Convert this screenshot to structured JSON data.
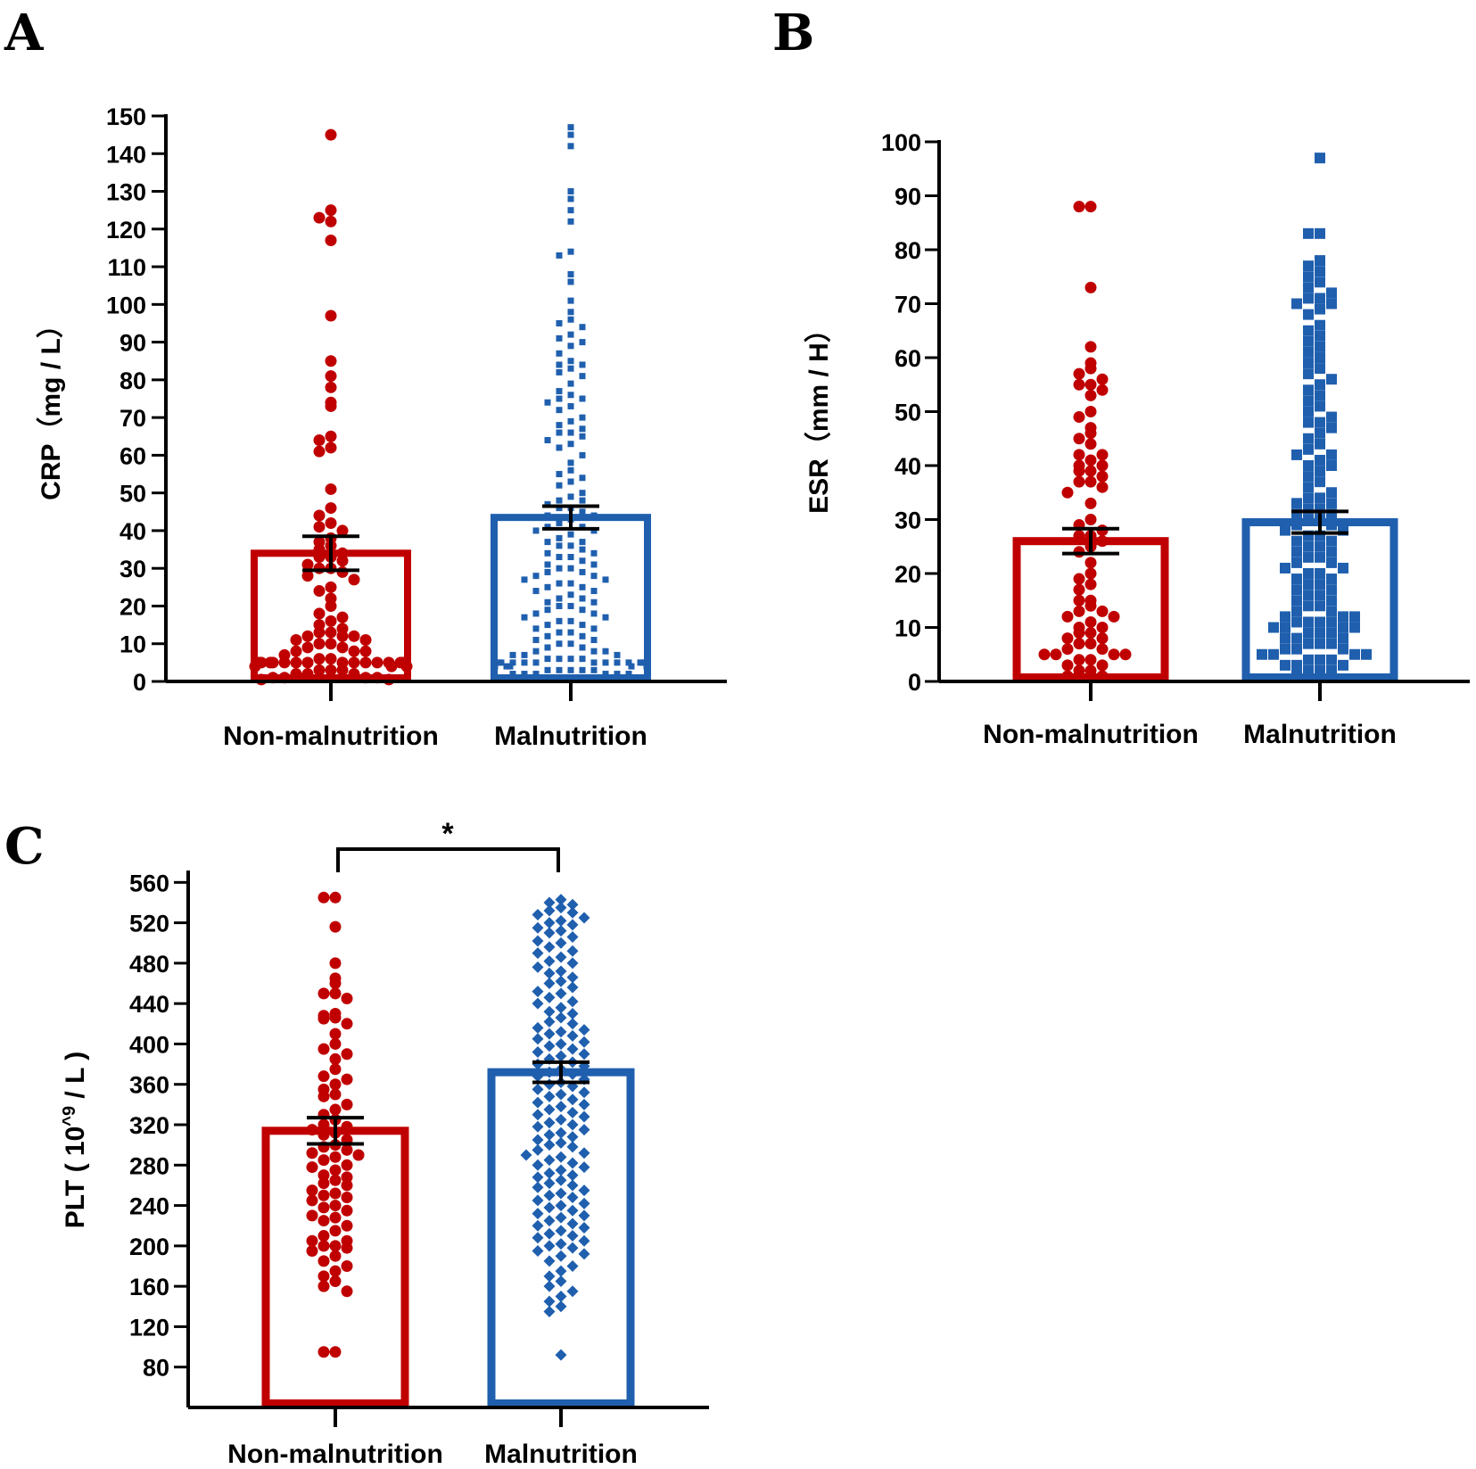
{
  "figure": {
    "panel_labels": [
      "A",
      "B",
      "C"
    ]
  },
  "colors": {
    "non_malnutrition": "#c00000",
    "malnutrition": "#1f5fae",
    "axis": "#000000"
  },
  "chart_data": [
    {
      "panel": "A",
      "type": "bar",
      "ylabel": "CRP（mg / L）",
      "categories": [
        "Non-malnutrition",
        "Malnutrition"
      ],
      "ylim": [
        0,
        150
      ],
      "yticks": [
        0,
        10,
        20,
        30,
        40,
        50,
        60,
        70,
        80,
        90,
        100,
        110,
        120,
        130,
        140,
        150
      ],
      "yticklabels": [
        "0",
        "10",
        "20",
        "30",
        "40",
        "50",
        "60",
        "70",
        "80",
        "90",
        "100",
        "110",
        "120",
        "130",
        "140",
        "150"
      ],
      "series": [
        {
          "name": "Non-malnutrition",
          "mean": 34,
          "sem": 4.5,
          "marker": "circle",
          "points": [
            145,
            125,
            123,
            122,
            117,
            97,
            85,
            81,
            78,
            74,
            73,
            65,
            64,
            62,
            61,
            51,
            46,
            44,
            42,
            41,
            40,
            38,
            37,
            36,
            35,
            34,
            33,
            33,
            32,
            31,
            30,
            30,
            29,
            28,
            27,
            25,
            24,
            22,
            20,
            18,
            17,
            16,
            15,
            14,
            13,
            13,
            12,
            12,
            12,
            11,
            11,
            10,
            10,
            9,
            9,
            8,
            8,
            8,
            7,
            6,
            6,
            5,
            5,
            5,
            5,
            5,
            5,
            5,
            5,
            5,
            5,
            5,
            5,
            5,
            5,
            4,
            4,
            4,
            3,
            3,
            3,
            2,
            2,
            2,
            1,
            1,
            1,
            1,
            0.5,
            0.5
          ]
        },
        {
          "name": "Malnutrition",
          "mean": 43.5,
          "sem": 3,
          "marker": "square-small",
          "points": [
            147,
            145,
            142,
            130,
            128,
            125,
            122,
            114,
            113,
            108,
            106,
            101,
            98,
            96,
            95,
            94,
            92,
            91,
            90,
            89,
            87,
            85,
            84,
            84,
            83,
            82,
            81,
            79,
            77,
            76,
            75,
            75,
            74,
            73,
            72,
            70,
            69,
            68,
            67,
            66,
            66,
            65,
            64,
            63,
            62,
            60,
            58,
            56,
            55,
            54,
            53,
            52,
            50,
            49,
            48,
            48,
            47,
            46,
            46,
            45,
            44,
            44,
            43,
            42,
            41,
            41,
            40,
            40,
            39,
            38,
            37,
            37,
            36,
            36,
            35,
            34,
            34,
            33,
            33,
            32,
            31,
            31,
            30,
            30,
            29,
            29,
            28,
            28,
            27,
            27,
            26,
            26,
            25,
            25,
            24,
            24,
            23,
            22,
            22,
            21,
            21,
            20,
            20,
            19,
            19,
            18,
            18,
            17,
            17,
            16,
            16,
            15,
            15,
            14,
            14,
            13,
            13,
            12,
            12,
            11,
            11,
            10,
            10,
            9,
            9,
            8,
            8,
            8,
            7,
            7,
            7,
            6,
            6,
            6,
            6,
            5,
            5,
            5,
            5,
            5,
            5,
            5,
            5,
            5,
            5,
            5,
            4,
            4,
            4,
            4,
            4,
            3,
            3,
            3,
            3,
            3,
            2,
            2,
            2,
            2,
            2,
            2,
            1,
            1,
            1,
            1,
            1,
            1,
            1,
            0.5,
            0.5,
            0.5,
            0.5,
            0.5
          ]
        }
      ],
      "significance": null
    },
    {
      "panel": "B",
      "type": "bar",
      "ylabel": "ESR（mm / H）",
      "categories": [
        "Non-malnutrition",
        "Malnutrition"
      ],
      "ylim": [
        0,
        100
      ],
      "yticks": [
        0,
        10,
        20,
        30,
        40,
        50,
        60,
        70,
        80,
        90,
        100
      ],
      "yticklabels": [
        "0",
        "10",
        "20",
        "30",
        "40",
        "50",
        "60",
        "70",
        "80",
        "90",
        "100"
      ],
      "series": [
        {
          "name": "Non-malnutrition",
          "mean": 26,
          "sem": 2.3,
          "marker": "circle",
          "points": [
            88,
            88,
            73,
            62,
            59,
            58,
            57,
            56,
            55,
            55,
            54,
            53,
            50,
            49,
            47,
            46,
            45,
            44,
            42,
            42,
            41,
            40,
            40,
            39,
            39,
            38,
            37,
            37,
            36,
            35,
            33,
            30,
            29,
            28,
            27,
            27,
            26,
            25,
            24,
            22,
            20,
            19,
            18,
            17,
            15,
            15,
            14,
            13,
            13,
            12,
            12,
            11,
            10,
            10,
            9,
            9,
            8,
            8,
            7,
            7,
            6,
            6,
            5,
            5,
            5,
            5,
            4,
            4,
            3,
            3,
            2,
            2,
            1,
            1
          ]
        },
        {
          "name": "Malnutrition",
          "mean": 29.5,
          "sem": 2,
          "marker": "square",
          "points": [
            97,
            83,
            83,
            78,
            77,
            76,
            75,
            74,
            73,
            72,
            71,
            71,
            70,
            70,
            69,
            68,
            66,
            65,
            64,
            63,
            62,
            61,
            60,
            59,
            58,
            57,
            56,
            55,
            54,
            53,
            52,
            51,
            50,
            49,
            48,
            48,
            47,
            46,
            45,
            44,
            43,
            42,
            42,
            41,
            40,
            40,
            39,
            38,
            37,
            36,
            35,
            34,
            34,
            33,
            33,
            32,
            32,
            31,
            31,
            30,
            30,
            29,
            29,
            28,
            28,
            27,
            27,
            26,
            26,
            25,
            25,
            24,
            24,
            23,
            23,
            22,
            22,
            21,
            21,
            20,
            20,
            19,
            19,
            18,
            18,
            17,
            17,
            16,
            16,
            15,
            15,
            14,
            14,
            13,
            13,
            12,
            12,
            12,
            11,
            11,
            11,
            11,
            10,
            10,
            10,
            10,
            9,
            9,
            9,
            8,
            8,
            8,
            7,
            7,
            7,
            6,
            6,
            6,
            5,
            5,
            5,
            5,
            4,
            4,
            4,
            3,
            3,
            3,
            2,
            2,
            2,
            2
          ]
        }
      ],
      "significance": null
    },
    {
      "panel": "C",
      "type": "bar",
      "ylabel": "PLT ( 10^9 / L )",
      "ylabel_parts": [
        "PLT ( 10",
        "^9",
        " / L )"
      ],
      "categories": [
        "Non-malnutrition",
        "Malnutrition"
      ],
      "ylim": [
        40,
        570
      ],
      "yticks": [
        80,
        120,
        160,
        200,
        240,
        280,
        320,
        360,
        400,
        440,
        480,
        520,
        560
      ],
      "yticklabels": [
        "80",
        "120",
        "160",
        "200",
        "240",
        "280",
        "320",
        "360",
        "400",
        "440",
        "480",
        "520",
        "560"
      ],
      "series": [
        {
          "name": "Non-malnutrition",
          "mean": 314,
          "sem": 13,
          "marker": "circle",
          "points": [
            545,
            545,
            516,
            480,
            465,
            460,
            450,
            450,
            445,
            430,
            428,
            426,
            425,
            420,
            410,
            400,
            395,
            390,
            385,
            375,
            368,
            365,
            360,
            355,
            350,
            348,
            340,
            335,
            330,
            325,
            320,
            318,
            315,
            312,
            310,
            305,
            300,
            298,
            295,
            292,
            290,
            288,
            285,
            280,
            278,
            275,
            270,
            268,
            265,
            262,
            260,
            255,
            252,
            250,
            248,
            245,
            240,
            238,
            235,
            230,
            228,
            225,
            220,
            215,
            210,
            205,
            205,
            200,
            200,
            198,
            195,
            190,
            185,
            180,
            175,
            170,
            165,
            160,
            155,
            95,
            95
          ]
        },
        {
          "name": "Malnutrition",
          "mean": 372,
          "sem": 10,
          "marker": "diamond",
          "points": [
            543,
            540,
            538,
            535,
            532,
            530,
            528,
            525,
            522,
            520,
            518,
            515,
            512,
            510,
            506,
            502,
            500,
            496,
            492,
            490,
            486,
            482,
            480,
            476,
            472,
            470,
            466,
            462,
            460,
            456,
            452,
            450,
            446,
            442,
            440,
            436,
            432,
            430,
            426,
            422,
            420,
            416,
            414,
            412,
            410,
            408,
            405,
            402,
            400,
            398,
            395,
            392,
            390,
            388,
            385,
            382,
            380,
            378,
            375,
            372,
            370,
            368,
            365,
            362,
            360,
            358,
            355,
            352,
            350,
            348,
            345,
            342,
            340,
            338,
            335,
            332,
            330,
            328,
            325,
            322,
            320,
            318,
            315,
            312,
            310,
            308,
            305,
            302,
            300,
            298,
            295,
            292,
            290,
            288,
            285,
            282,
            280,
            278,
            275,
            272,
            270,
            268,
            265,
            262,
            260,
            258,
            255,
            252,
            250,
            248,
            245,
            242,
            240,
            238,
            235,
            232,
            230,
            228,
            225,
            222,
            220,
            218,
            215,
            212,
            210,
            208,
            205,
            202,
            200,
            198,
            195,
            192,
            190,
            185,
            180,
            175,
            170,
            165,
            160,
            155,
            150,
            145,
            140,
            135,
            92
          ]
        }
      ],
      "significance": "*"
    }
  ]
}
